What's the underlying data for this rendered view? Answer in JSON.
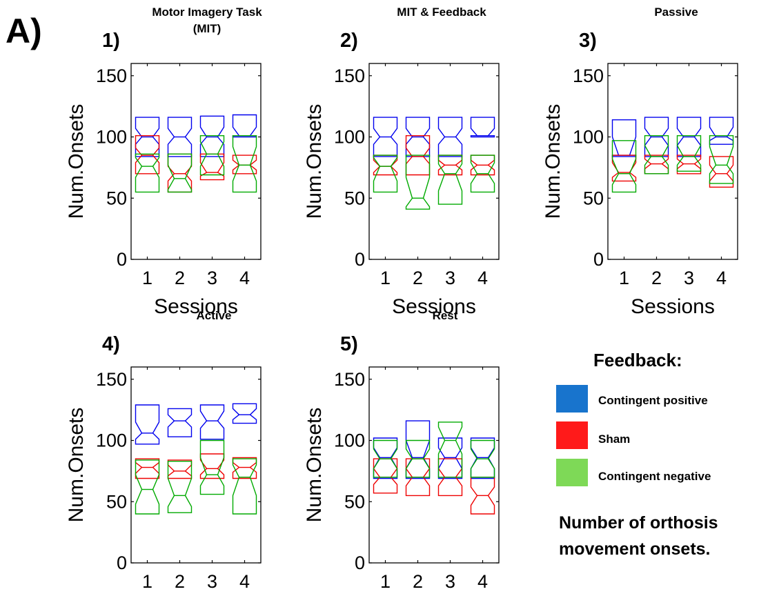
{
  "figure_label": "A)",
  "chart_data": [
    {
      "type": "box",
      "panel": "1)",
      "title": [
        "Motor Imagery Task",
        "(MIT)"
      ],
      "categories": [
        "1",
        "2",
        "3",
        "4"
      ],
      "xlabel": "Sessions",
      "ylabel": "Num.Onsets",
      "ylim": [
        0,
        160
      ],
      "yticks": [
        "0",
        "50",
        "100",
        "150"
      ],
      "series": [
        {
          "name": "Contingent positive",
          "color": "#0000ee",
          "boxes": [
            {
              "q1": 84,
              "median": 100,
              "q3": 116,
              "notch_low": 94,
              "notch_high": 107
            },
            {
              "q1": 84,
              "median": 100,
              "q3": 116,
              "notch_low": 94,
              "notch_high": 107
            },
            {
              "q1": 84,
              "median": 100,
              "q3": 117,
              "notch_low": 94,
              "notch_high": 108
            },
            {
              "q1": 100,
              "median": 101,
              "q3": 118,
              "notch_low": 101,
              "notch_high": 108
            }
          ]
        },
        {
          "name": "Sham",
          "color": "#ee0000",
          "boxes": [
            {
              "q1": 70,
              "median": 85,
              "q3": 101,
              "notch_low": 79,
              "notch_high": 91
            },
            {
              "q1": 55,
              "median": 70,
              "q3": 86,
              "notch_low": 64,
              "notch_high": 76
            },
            {
              "q1": 65,
              "median": 71,
              "q3": 86,
              "notch_low": 68,
              "notch_high": 79
            },
            {
              "q1": 70,
              "median": 77,
              "q3": 85,
              "notch_low": 73,
              "notch_high": 81
            }
          ]
        },
        {
          "name": "Contingent negative",
          "color": "#00aa00",
          "boxes": [
            {
              "q1": 55,
              "median": 76,
              "q3": 86,
              "notch_low": 67,
              "notch_high": 83
            },
            {
              "q1": 55,
              "median": 66,
              "q3": 86,
              "notch_low": 57,
              "notch_high": 77
            },
            {
              "q1": 69,
              "median": 86,
              "q3": 101,
              "notch_low": 76,
              "notch_high": 96
            },
            {
              "q1": 55,
              "median": 77,
              "q3": 101,
              "notch_low": 64,
              "notch_high": 92
            }
          ]
        }
      ]
    },
    {
      "type": "box",
      "panel": "2)",
      "title": [
        "MIT & Feedback"
      ],
      "categories": [
        "1",
        "2",
        "3",
        "4"
      ],
      "xlabel": "Sessions",
      "ylabel": "Num.Onsets",
      "ylim": [
        0,
        160
      ],
      "yticks": [
        "0",
        "50",
        "100",
        "150"
      ],
      "series": [
        {
          "name": "Contingent positive",
          "color": "#0000ee",
          "boxes": [
            {
              "q1": 84,
              "median": 100,
              "q3": 116,
              "notch_low": 94,
              "notch_high": 107
            },
            {
              "q1": 84,
              "median": 100,
              "q3": 116,
              "notch_low": 94,
              "notch_high": 107
            },
            {
              "q1": 84,
              "median": 100,
              "q3": 116,
              "notch_low": 94,
              "notch_high": 107
            },
            {
              "q1": 100,
              "median": 101,
              "q3": 116,
              "notch_low": 101,
              "notch_high": 107
            }
          ]
        },
        {
          "name": "Sham",
          "color": "#ee0000",
          "boxes": [
            {
              "q1": 69,
              "median": 76,
              "q3": 85,
              "notch_low": 71,
              "notch_high": 81
            },
            {
              "q1": 69,
              "median": 84,
              "q3": 101,
              "notch_low": 78,
              "notch_high": 91
            },
            {
              "q1": 69,
              "median": 77,
              "q3": 85,
              "notch_low": 73,
              "notch_high": 81
            },
            {
              "q1": 69,
              "median": 77,
              "q3": 85,
              "notch_low": 73,
              "notch_high": 81
            }
          ]
        },
        {
          "name": "Contingent negative",
          "color": "#00aa00",
          "boxes": [
            {
              "q1": 55,
              "median": 76,
              "q3": 85,
              "notch_low": 64,
              "notch_high": 83
            },
            {
              "q1": 41,
              "median": 50,
              "q3": 85,
              "notch_low": 43,
              "notch_high": 67
            },
            {
              "q1": 45,
              "median": 70,
              "q3": 85,
              "notch_low": 56,
              "notch_high": 78
            },
            {
              "q1": 55,
              "median": 70,
              "q3": 85,
              "notch_low": 62,
              "notch_high": 79
            }
          ]
        }
      ]
    },
    {
      "type": "box",
      "panel": "3)",
      "title": [
        "Passive"
      ],
      "categories": [
        "1",
        "2",
        "3",
        "4"
      ],
      "xlabel": "Sessions",
      "ylabel": "Num.Onsets",
      "ylim": [
        0,
        160
      ],
      "yticks": [
        "0",
        "50",
        "100",
        "150"
      ],
      "series": [
        {
          "name": "Contingent positive",
          "color": "#0000ee",
          "boxes": [
            {
              "q1": 84,
              "median": 85,
              "q3": 114,
              "notch_low": 85,
              "notch_high": 100
            },
            {
              "q1": 84,
              "median": 100,
              "q3": 116,
              "notch_low": 93,
              "notch_high": 107
            },
            {
              "q1": 84,
              "median": 100,
              "q3": 116,
              "notch_low": 93,
              "notch_high": 107
            },
            {
              "q1": 94,
              "median": 100,
              "q3": 116,
              "notch_low": 97,
              "notch_high": 108
            }
          ]
        },
        {
          "name": "Sham",
          "color": "#ee0000",
          "boxes": [
            {
              "q1": 64,
              "median": 71,
              "q3": 85,
              "notch_low": 67,
              "notch_high": 79
            },
            {
              "q1": 70,
              "median": 78,
              "q3": 85,
              "notch_low": 74,
              "notch_high": 82
            },
            {
              "q1": 70,
              "median": 78,
              "q3": 85,
              "notch_low": 74,
              "notch_high": 82
            },
            {
              "q1": 59,
              "median": 70,
              "q3": 84,
              "notch_low": 64,
              "notch_high": 77
            }
          ]
        },
        {
          "name": "Contingent negative",
          "color": "#00aa00",
          "boxes": [
            {
              "q1": 55,
              "median": 70,
              "q3": 97,
              "notch_low": 61,
              "notch_high": 82
            },
            {
              "q1": 70,
              "median": 84,
              "q3": 101,
              "notch_low": 77,
              "notch_high": 93
            },
            {
              "q1": 72,
              "median": 84,
              "q3": 101,
              "notch_low": 77,
              "notch_high": 93
            },
            {
              "q1": 62,
              "median": 77,
              "q3": 101,
              "notch_low": 70,
              "notch_high": 92
            }
          ]
        }
      ]
    },
    {
      "type": "box",
      "panel": "4)",
      "title": [
        "Active"
      ],
      "categories": [
        "1",
        "2",
        "3",
        "4"
      ],
      "xlabel": "",
      "ylabel": "Num.Onsets",
      "ylim": [
        0,
        160
      ],
      "yticks": [
        "0",
        "50",
        "100",
        "150"
      ],
      "series": [
        {
          "name": "Contingent positive",
          "color": "#0000ee",
          "boxes": [
            {
              "q1": 97,
              "median": 106,
              "q3": 129,
              "notch_low": 101,
              "notch_high": 115
            },
            {
              "q1": 103,
              "median": 116,
              "q3": 126,
              "notch_low": 111,
              "notch_high": 121
            },
            {
              "q1": 101,
              "median": 116,
              "q3": 129,
              "notch_low": 110,
              "notch_high": 124
            },
            {
              "q1": 114,
              "median": 121,
              "q3": 130,
              "notch_low": 117,
              "notch_high": 126
            }
          ]
        },
        {
          "name": "Sham",
          "color": "#ee0000",
          "boxes": [
            {
              "q1": 69,
              "median": 78,
              "q3": 85,
              "notch_low": 73,
              "notch_high": 82
            },
            {
              "q1": 69,
              "median": 75,
              "q3": 84,
              "notch_low": 71,
              "notch_high": 80
            },
            {
              "q1": 69,
              "median": 77,
              "q3": 89,
              "notch_low": 72,
              "notch_high": 84
            },
            {
              "q1": 69,
              "median": 78,
              "q3": 86,
              "notch_low": 74,
              "notch_high": 82
            }
          ]
        },
        {
          "name": "Contingent negative",
          "color": "#00aa00",
          "boxes": [
            {
              "q1": 40,
              "median": 60,
              "q3": 84,
              "notch_low": 48,
              "notch_high": 72
            },
            {
              "q1": 41,
              "median": 55,
              "q3": 83,
              "notch_low": 46,
              "notch_high": 69
            },
            {
              "q1": 56,
              "median": 72,
              "q3": 100,
              "notch_low": 63,
              "notch_high": 86
            },
            {
              "q1": 40,
              "median": 70,
              "q3": 85,
              "notch_low": 55,
              "notch_high": 80
            }
          ]
        }
      ]
    },
    {
      "type": "box",
      "panel": "5)",
      "title": [
        "Rest"
      ],
      "categories": [
        "1",
        "2",
        "3",
        "4"
      ],
      "xlabel": "",
      "ylabel": "Num.Onsets",
      "ylim": [
        0,
        160
      ],
      "yticks": [
        "0",
        "50",
        "100",
        "150"
      ],
      "series": [
        {
          "name": "Contingent positive",
          "color": "#0000ee",
          "boxes": [
            {
              "q1": 69,
              "median": 86,
              "q3": 102,
              "notch_low": 77,
              "notch_high": 94
            },
            {
              "q1": 69,
              "median": 86,
              "q3": 116,
              "notch_low": 77,
              "notch_high": 100
            },
            {
              "q1": 69,
              "median": 86,
              "q3": 102,
              "notch_low": 77,
              "notch_high": 94
            },
            {
              "q1": 69,
              "median": 86,
              "q3": 102,
              "notch_low": 77,
              "notch_high": 94
            }
          ]
        },
        {
          "name": "Sham",
          "color": "#ee0000",
          "boxes": [
            {
              "q1": 57,
              "median": 70,
              "q3": 85,
              "notch_low": 64,
              "notch_high": 77
            },
            {
              "q1": 55,
              "median": 70,
              "q3": 85,
              "notch_low": 63,
              "notch_high": 77
            },
            {
              "q1": 55,
              "median": 70,
              "q3": 85,
              "notch_low": 63,
              "notch_high": 77
            },
            {
              "q1": 40,
              "median": 55,
              "q3": 70,
              "notch_low": 47,
              "notch_high": 62
            }
          ]
        },
        {
          "name": "Contingent negative",
          "color": "#00aa00",
          "boxes": [
            {
              "q1": 70,
              "median": 85,
              "q3": 100,
              "notch_low": 77,
              "notch_high": 93
            },
            {
              "q1": 70,
              "median": 85,
              "q3": 100,
              "notch_low": 77,
              "notch_high": 93
            },
            {
              "q1": 70,
              "median": 100,
              "q3": 115,
              "notch_low": 89,
              "notch_high": 111
            },
            {
              "q1": 70,
              "median": 85,
              "q3": 100,
              "notch_low": 77,
              "notch_high": 93
            }
          ]
        }
      ]
    }
  ],
  "legend": {
    "title": "Feedback:",
    "items": [
      {
        "label": "Contingent positive",
        "color": "#1874cd"
      },
      {
        "label": "Sham",
        "color": "#ff1a1a"
      },
      {
        "label": "Contingent negative",
        "color": "#7ed957"
      }
    ]
  },
  "note": [
    "Number of orthosis",
    "movement onsets."
  ]
}
